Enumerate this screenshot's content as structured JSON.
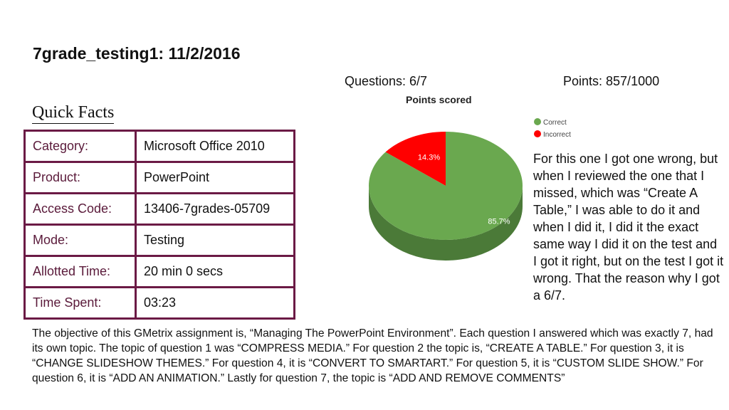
{
  "header": {
    "title": "7grade_testing1: 11/2/2016",
    "questions": "Questions: 6/7",
    "points": "Points: 857/1000"
  },
  "quick_facts": {
    "heading": "Quick Facts",
    "rows": [
      {
        "label": "Category:",
        "value": "Microsoft Office 2010"
      },
      {
        "label": "Product:",
        "value": "PowerPoint"
      },
      {
        "label": "Access Code:",
        "value": "13406-7grades-05709"
      },
      {
        "label": "Mode:",
        "value": "Testing"
      },
      {
        "label": "Allotted Time:",
        "value": "20 min 0 secs"
      },
      {
        "label": "Time Spent:",
        "value": "03:23"
      }
    ]
  },
  "chart_data": {
    "type": "pie",
    "title": "Points scored",
    "categories": [
      "Correct",
      "Incorrect"
    ],
    "values": [
      85.7,
      14.3
    ],
    "labels": [
      "85.7%",
      "14.3%"
    ],
    "colors": [
      "#6aa84f",
      "#ff0000"
    ],
    "legend": "top-right"
  },
  "note": "For this one I got one wrong, but when I reviewed the one that I missed, which was “Create A Table,” I was able to do it and when I did it, I did it the exact same way I did it on the test and I got it right, but on the test I got it wrong. That the reason why I got a 6/7.",
  "objective": "The objective of this GMetrix assignment is, “Managing The PowerPoint Environment”. Each question I answered which was exactly 7, had its own topic. The topic of question 1 was “COMPRESS MEDIA.” For question 2 the topic is, “CREATE A TABLE.” For question 3, it is “CHANGE SLIDESHOW THEMES.” For question 4, it is “CONVERT TO SMARTART.” For question 5, it is “CUSTOM SLIDE SHOW.” For question 6, it is “ADD AN ANIMATION.” Lastly for question 7, the topic is “ADD AND REMOVE COMMENTS”"
}
